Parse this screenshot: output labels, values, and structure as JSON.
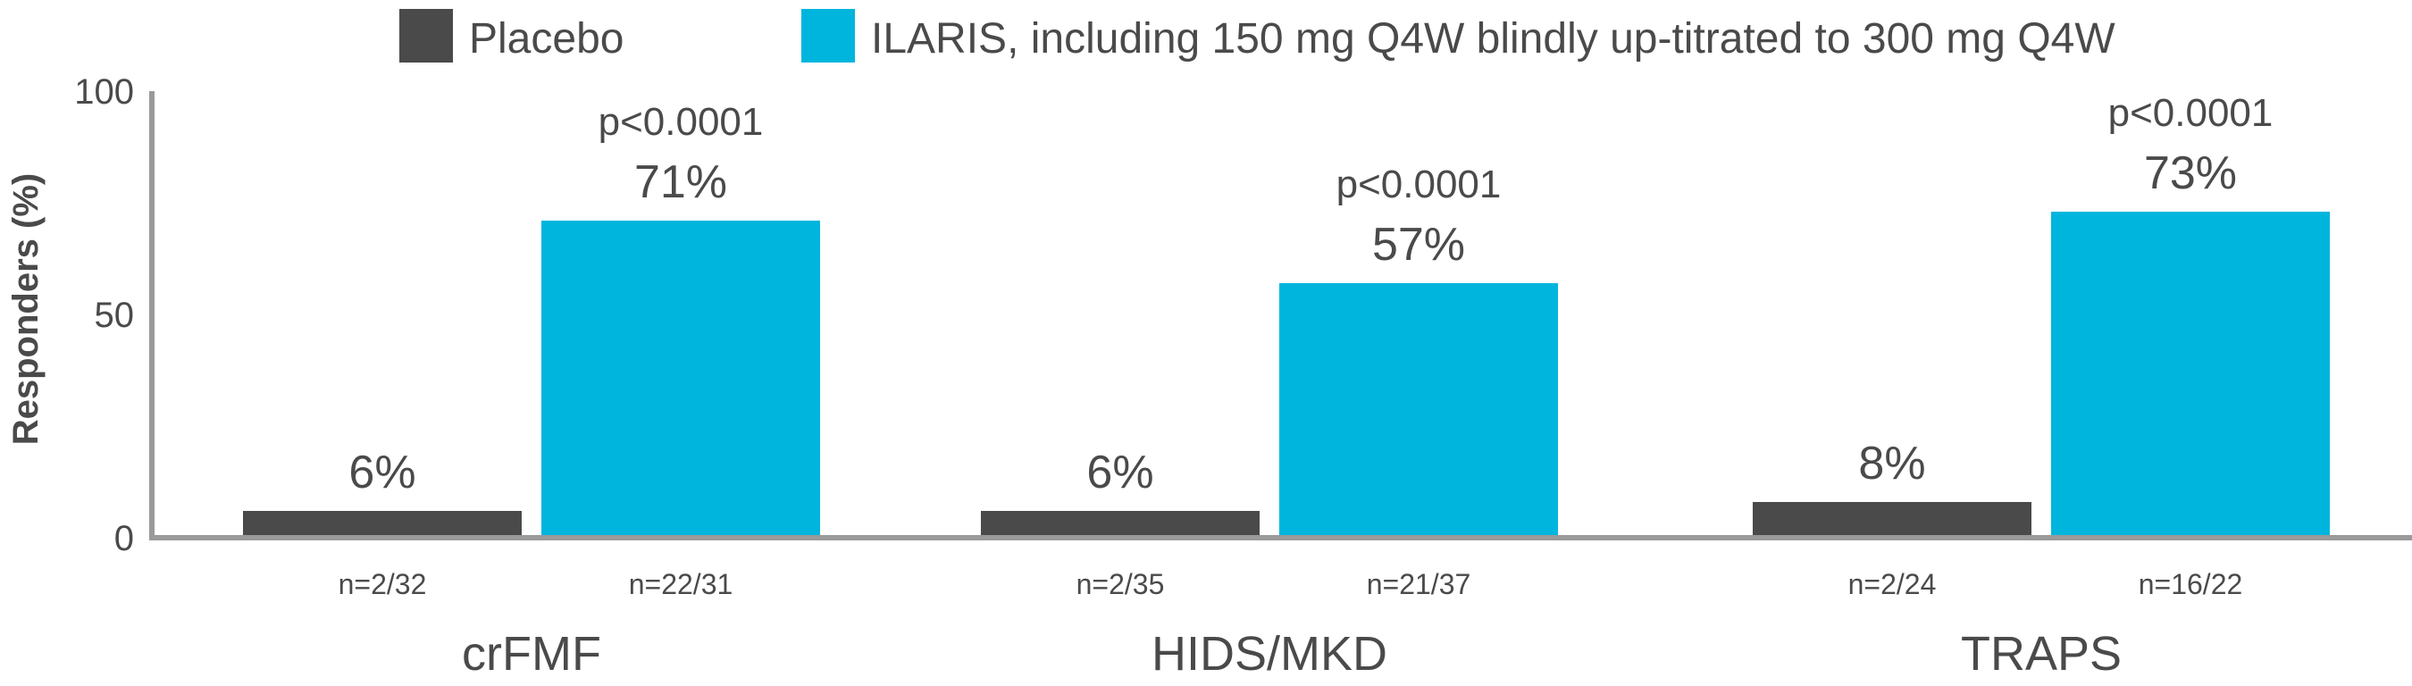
{
  "chart_data": {
    "type": "bar",
    "categories": [
      "crFMF",
      "HIDS/MKD",
      "TRAPS"
    ],
    "series": [
      {
        "name": "Placebo",
        "color": "#4a4a4a",
        "values": [
          6,
          6,
          8
        ],
        "value_labels": [
          "6%",
          "6%",
          "8%"
        ],
        "n_labels": [
          "n=2/32",
          "n=2/35",
          "n=2/24"
        ],
        "p_labels": [
          "",
          "",
          ""
        ]
      },
      {
        "name": "ILARIS, including 150 mg Q4W blindly up-titrated to 300 mg Q4W",
        "color": "#00b5dd",
        "values": [
          71,
          57,
          73
        ],
        "value_labels": [
          "71%",
          "57%",
          "73%"
        ],
        "n_labels": [
          "n=22/31",
          "n=21/37",
          "n=16/22"
        ],
        "p_labels": [
          "p<0.0001",
          "p<0.0001",
          "p<0.0001"
        ]
      }
    ],
    "ylabel": "Responders (%)",
    "xlabel": "",
    "ylim": [
      0,
      100
    ],
    "yticks": [
      0,
      50,
      100
    ],
    "legend_position": "top",
    "grid": false,
    "axis_color": "#9a9a9a"
  }
}
